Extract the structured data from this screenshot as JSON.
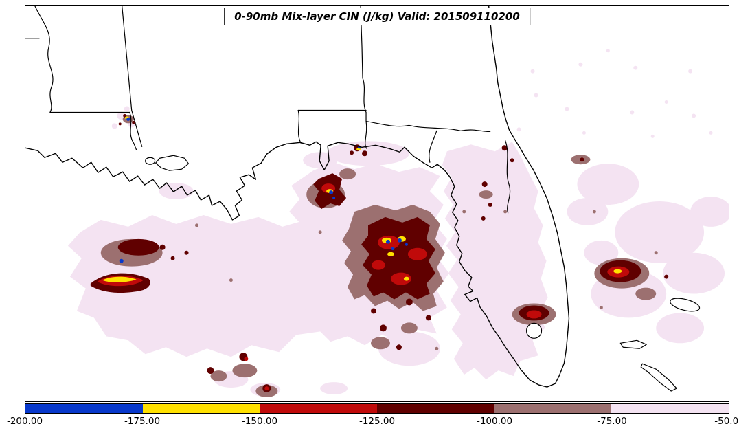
{
  "chart_data": {
    "type": "heatmap",
    "title": "0-90mb Mix-layer CIN (J/kg) Valid: 201509110200",
    "variable": "0-90mb Mix-layer CIN",
    "units": "J/kg",
    "valid_time": "201509110200",
    "value_range": [
      -200,
      -50
    ],
    "colorbar": {
      "orientation": "horizontal",
      "position": "bottom",
      "levels": [
        -200,
        -175,
        -150,
        -125,
        -100,
        -75,
        -50
      ],
      "ticks": [
        "-200.00",
        "-175.00",
        "-150.00",
        "-125.00",
        "-100.00",
        "-75.00",
        "-50.00"
      ],
      "colors": [
        "#0838cb",
        "#ffe100",
        "#c00a0a",
        "#600000",
        "#9c7070",
        "#f4e3f2"
      ]
    },
    "bins": [
      {
        "range": [
          -200,
          -175
        ],
        "color": "#0838cb"
      },
      {
        "range": [
          -175,
          -150
        ],
        "color": "#ffe100"
      },
      {
        "range": [
          -150,
          -125
        ],
        "color": "#c00a0a"
      },
      {
        "range": [
          -125,
          -100
        ],
        "color": "#600000"
      },
      {
        "range": [
          -100,
          -75
        ],
        "color": "#9c7070"
      },
      {
        "range": [
          -75,
          -50
        ],
        "color": "#f4e3f2"
      }
    ]
  }
}
